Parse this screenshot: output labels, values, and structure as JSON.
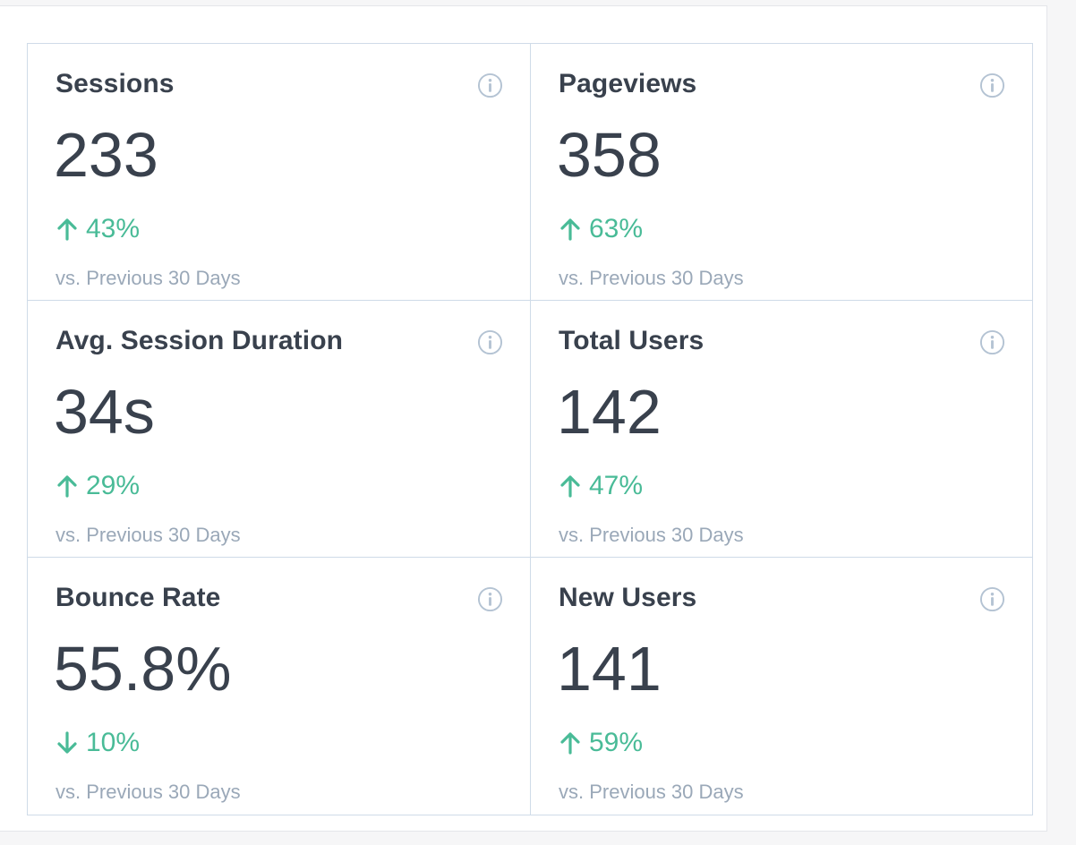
{
  "comparison_label": "vs. Previous 30 Days",
  "colors": {
    "positive": "#49bb97",
    "border": "#cfdbe8",
    "text": "#39414d",
    "muted": "#9aa8b8"
  },
  "metrics": [
    {
      "title": "Sessions",
      "value": "233",
      "change": "43%",
      "direction": "up"
    },
    {
      "title": "Pageviews",
      "value": "358",
      "change": "63%",
      "direction": "up"
    },
    {
      "title": "Avg. Session Duration",
      "value": "34s",
      "change": "29%",
      "direction": "up"
    },
    {
      "title": "Total Users",
      "value": "142",
      "change": "47%",
      "direction": "up"
    },
    {
      "title": "Bounce Rate",
      "value": "55.8%",
      "change": "10%",
      "direction": "down"
    },
    {
      "title": "New Users",
      "value": "141",
      "change": "59%",
      "direction": "up"
    }
  ]
}
